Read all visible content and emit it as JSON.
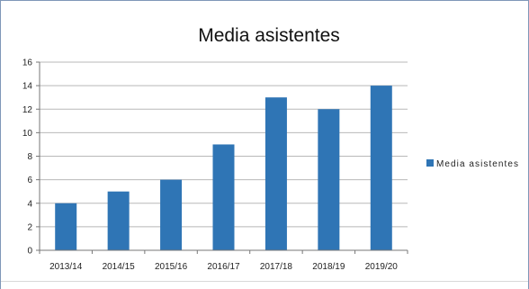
{
  "chart_data": {
    "type": "bar",
    "title": "Media asistentes",
    "categories": [
      "2013/14",
      "2014/15",
      "2015/16",
      "2016/17",
      "2017/18",
      "2018/19",
      "2019/20"
    ],
    "series": [
      {
        "name": "Media asistentes",
        "values": [
          4,
          5,
          6,
          9,
          13,
          12,
          14
        ]
      }
    ],
    "ylim": [
      0,
      16
    ],
    "yticks": [
      0,
      2,
      4,
      6,
      8,
      10,
      12,
      14,
      16
    ],
    "grid": true,
    "legend_position": "right",
    "colors": {
      "bar": "#2f75b5",
      "grid": "#b8b8b8",
      "axis": "#777777",
      "frame": "#7f97b8"
    }
  }
}
